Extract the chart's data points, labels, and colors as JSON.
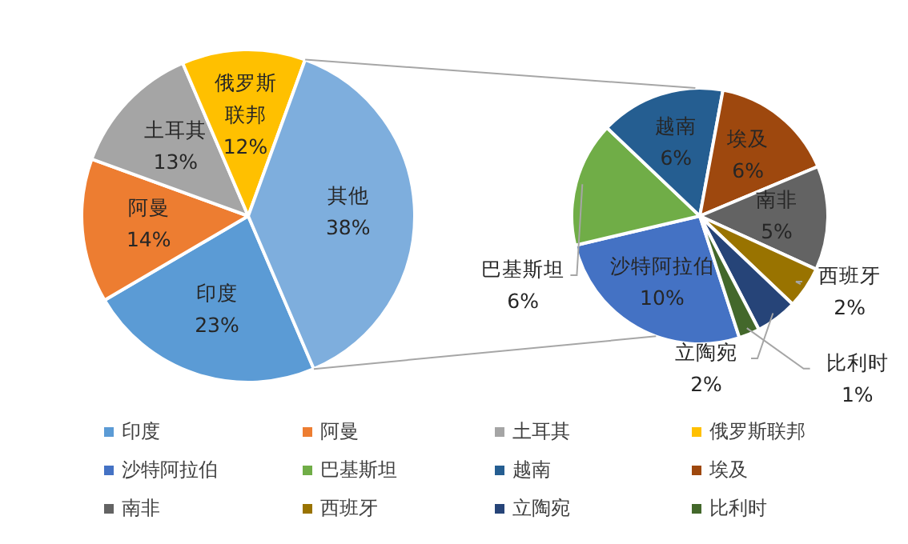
{
  "chart_data": [
    {
      "type": "pie",
      "legend": "bottom",
      "categories": [
        "印度",
        "阿曼",
        "土耳其",
        "俄罗斯联邦",
        "其他"
      ],
      "values": [
        23,
        14,
        13,
        12,
        38
      ],
      "value_labels": [
        "23%",
        "14%",
        "13%",
        "12%",
        "38%"
      ],
      "colors": [
        "#5b9bd5",
        "#ed7d31",
        "#a5a5a5",
        "#ffc000",
        "#7eaedd"
      ]
    },
    {
      "type": "pie",
      "legend": "bottom",
      "categories": [
        "沙特阿拉伯",
        "巴基斯坦",
        "越南",
        "埃及",
        "南非",
        "西班牙",
        "立陶宛",
        "比利时"
      ],
      "values": [
        10,
        6,
        6,
        6,
        5,
        2,
        2,
        1
      ],
      "value_labels": [
        "10%",
        "6%",
        "6%",
        "6%",
        "5%",
        "2%",
        "2%",
        "1%"
      ],
      "colors": [
        "#4472c4",
        "#70ad47",
        "#255e91",
        "#9e480e",
        "#636363",
        "#997300",
        "#264478",
        "#43682b"
      ]
    }
  ]
}
